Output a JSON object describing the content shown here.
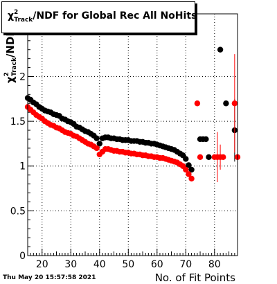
{
  "title": {
    "chi": "χ",
    "sup": "2",
    "sub": "Track",
    "rest": "/NDF for Global Rec All NoHits"
  },
  "timestamp": "Thu May 20 15:57:58 2021",
  "chart_data": {
    "type": "scatter",
    "xlabel": "No. of Fit Points",
    "ylabel_parts": {
      "chi": "χ",
      "sup": "2",
      "sub": "Track",
      "rest": "/NDF"
    },
    "xlim": [
      15,
      88
    ],
    "ylim": [
      0,
      2.7
    ],
    "xticks": [
      20,
      30,
      40,
      50,
      60,
      70,
      80
    ],
    "yticks": [
      0,
      0.5,
      1,
      1.5,
      2
    ],
    "ytick_labels": [
      "0",
      "0.5",
      "1",
      "1.5",
      "2"
    ],
    "grid": true,
    "colors": {
      "black_series": "#000000",
      "red_series": "#ff0000"
    },
    "series": [
      {
        "color": "#000000",
        "x": [
          15,
          16,
          17,
          18,
          19,
          20,
          21,
          22,
          23,
          24,
          25,
          26,
          27,
          28,
          29,
          30,
          31,
          32,
          33,
          34,
          35,
          36,
          37,
          38,
          39,
          40,
          41,
          42,
          43,
          44,
          45,
          46,
          47,
          48,
          49,
          50,
          51,
          52,
          53,
          54,
          55,
          56,
          57,
          58,
          59,
          60,
          61,
          62,
          63,
          64,
          65,
          66,
          67,
          68,
          69,
          70,
          71,
          72,
          75,
          76,
          77,
          78,
          82,
          84,
          87
        ],
        "y": [
          1.76,
          1.74,
          1.71,
          1.69,
          1.66,
          1.64,
          1.62,
          1.61,
          1.6,
          1.58,
          1.57,
          1.56,
          1.53,
          1.52,
          1.5,
          1.49,
          1.47,
          1.44,
          1.43,
          1.41,
          1.39,
          1.38,
          1.36,
          1.34,
          1.31,
          1.25,
          1.31,
          1.32,
          1.32,
          1.31,
          1.31,
          1.3,
          1.3,
          1.29,
          1.29,
          1.29,
          1.28,
          1.28,
          1.28,
          1.27,
          1.27,
          1.26,
          1.26,
          1.25,
          1.25,
          1.24,
          1.23,
          1.22,
          1.21,
          1.2,
          1.19,
          1.18,
          1.16,
          1.14,
          1.12,
          1.08,
          1.01,
          0.96,
          1.3,
          1.3,
          1.3,
          1.1,
          2.3,
          1.7,
          1.4
        ],
        "err": [
          0,
          0,
          0,
          0,
          0,
          0,
          0,
          0,
          0,
          0,
          0,
          0,
          0,
          0,
          0,
          0,
          0,
          0,
          0,
          0,
          0,
          0,
          0,
          0,
          0,
          0,
          0,
          0,
          0,
          0,
          0,
          0,
          0,
          0,
          0,
          0,
          0,
          0,
          0,
          0,
          0,
          0,
          0,
          0,
          0,
          0,
          0,
          0,
          0,
          0,
          0,
          0,
          0,
          0,
          0,
          0,
          0,
          0,
          0,
          0,
          0,
          0,
          0,
          0,
          0.35
        ]
      },
      {
        "color": "#ff0000",
        "x": [
          15,
          16,
          17,
          18,
          19,
          20,
          21,
          22,
          23,
          24,
          25,
          26,
          27,
          28,
          29,
          30,
          31,
          32,
          33,
          34,
          35,
          36,
          37,
          38,
          39,
          40,
          41,
          42,
          43,
          44,
          45,
          46,
          47,
          48,
          49,
          50,
          51,
          52,
          53,
          54,
          55,
          56,
          57,
          58,
          59,
          60,
          61,
          62,
          63,
          64,
          65,
          66,
          67,
          68,
          69,
          70,
          71,
          72,
          74,
          75,
          80,
          81,
          82,
          83,
          87,
          88
        ],
        "y": [
          1.66,
          1.63,
          1.6,
          1.57,
          1.55,
          1.53,
          1.5,
          1.48,
          1.46,
          1.45,
          1.43,
          1.42,
          1.4,
          1.38,
          1.37,
          1.36,
          1.34,
          1.33,
          1.31,
          1.29,
          1.27,
          1.25,
          1.24,
          1.22,
          1.2,
          1.13,
          1.16,
          1.19,
          1.19,
          1.18,
          1.17,
          1.17,
          1.16,
          1.16,
          1.15,
          1.15,
          1.14,
          1.14,
          1.13,
          1.13,
          1.12,
          1.12,
          1.11,
          1.11,
          1.1,
          1.1,
          1.09,
          1.09,
          1.08,
          1.07,
          1.06,
          1.05,
          1.04,
          1.02,
          1.0,
          0.96,
          0.91,
          0.86,
          1.7,
          1.1,
          1.1,
          1.1,
          1.1,
          1.1,
          1.7,
          1.1
        ],
        "err": [
          0,
          0,
          0,
          0,
          0,
          0,
          0,
          0,
          0,
          0,
          0,
          0,
          0,
          0,
          0,
          0,
          0,
          0,
          0,
          0,
          0,
          0,
          0,
          0,
          0,
          0,
          0,
          0,
          0,
          0,
          0,
          0,
          0,
          0,
          0,
          0,
          0,
          0,
          0,
          0,
          0,
          0,
          0,
          0,
          0,
          0,
          0,
          0,
          0,
          0,
          0,
          0,
          0,
          0,
          0,
          0,
          0,
          0,
          0,
          0,
          0,
          0.28,
          0.14,
          0,
          0.55,
          0
        ]
      }
    ]
  }
}
